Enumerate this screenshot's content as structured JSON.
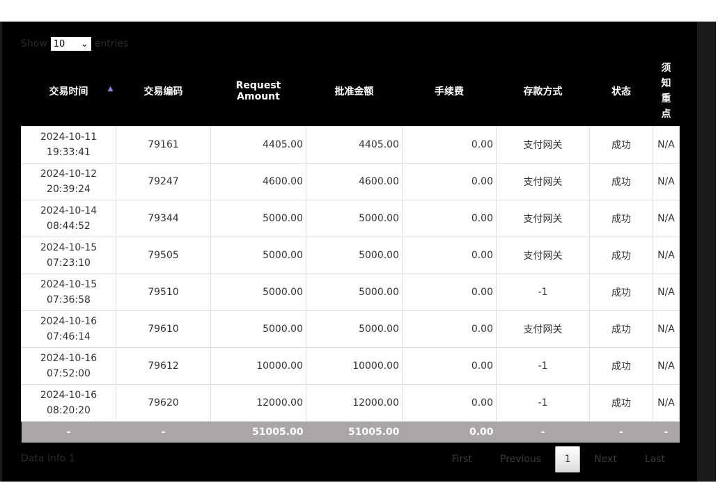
{
  "length": {
    "show": "Show",
    "value": "10",
    "entries": "entries"
  },
  "columns": [
    "交易时间",
    "交易编码",
    "Request Amount",
    "批准金额",
    "手续费",
    "存款方式",
    "状态",
    "须知重点"
  ],
  "rows": [
    [
      "2024-10-11 19:33:41",
      "79161",
      "4405.00",
      "4405.00",
      "0.00",
      "支付网关",
      "成功",
      "N/A"
    ],
    [
      "2024-10-12 20:39:24",
      "79247",
      "4600.00",
      "4600.00",
      "0.00",
      "支付网关",
      "成功",
      "N/A"
    ],
    [
      "2024-10-14 08:44:52",
      "79344",
      "5000.00",
      "5000.00",
      "0.00",
      "支付网关",
      "成功",
      "N/A"
    ],
    [
      "2024-10-15 07:23:10",
      "79505",
      "5000.00",
      "5000.00",
      "0.00",
      "支付网关",
      "成功",
      "N/A"
    ],
    [
      "2024-10-15 07:36:58",
      "79510",
      "5000.00",
      "5000.00",
      "0.00",
      "-1",
      "成功",
      "N/A"
    ],
    [
      "2024-10-16 07:46:14",
      "79610",
      "5000.00",
      "5000.00",
      "0.00",
      "支付网关",
      "成功",
      "N/A"
    ],
    [
      "2024-10-16 07:52:00",
      "79612",
      "10000.00",
      "10000.00",
      "0.00",
      "-1",
      "成功",
      "N/A"
    ],
    [
      "2024-10-16 08:20:20",
      "79620",
      "12000.00",
      "12000.00",
      "0.00",
      "-1",
      "成功",
      "N/A"
    ]
  ],
  "footer": [
    "-",
    "-",
    "51005.00",
    "51005.00",
    "0.00",
    "-",
    "-",
    "-"
  ],
  "info": "Data Info 1",
  "pager": {
    "first": "First",
    "previous": "Previous",
    "current": "1",
    "next": "Next",
    "last": "Last"
  }
}
